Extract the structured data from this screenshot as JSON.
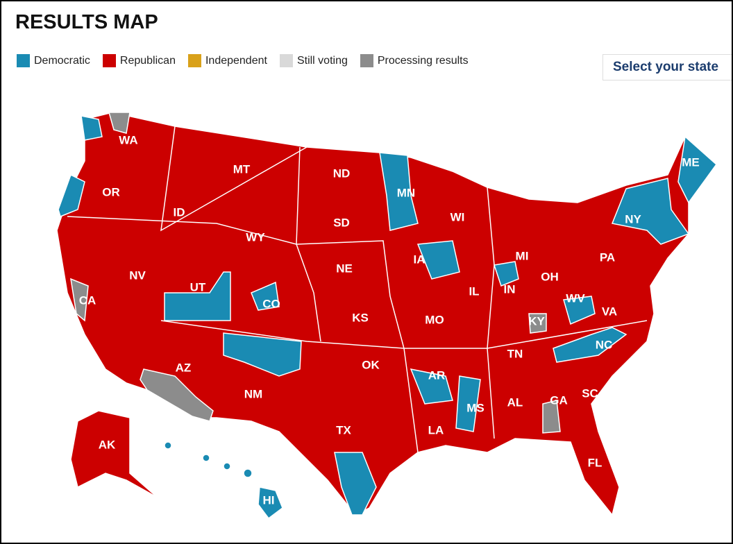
{
  "header": {
    "title": "RESULTS MAP",
    "button": "Select your state"
  },
  "legend": [
    {
      "label": "Democratic",
      "color": "#1a8bb3"
    },
    {
      "label": "Republican",
      "color": "#cc0000"
    },
    {
      "label": "Independent",
      "color": "#d9a11a"
    },
    {
      "label": "Still voting",
      "color": "#d9d9d9"
    },
    {
      "label": "Processing results",
      "color": "#8c8c8c"
    }
  ],
  "states": [
    "WA",
    "OR",
    "CA",
    "NV",
    "ID",
    "MT",
    "WY",
    "UT",
    "CO",
    "AZ",
    "NM",
    "ND",
    "SD",
    "NE",
    "KS",
    "OK",
    "TX",
    "MN",
    "IA",
    "MO",
    "AR",
    "LA",
    "WI",
    "IL",
    "MS",
    "MI",
    "IN",
    "OH",
    "KY",
    "TN",
    "AL",
    "GA",
    "FL",
    "SC",
    "NC",
    "VA",
    "WV",
    "PA",
    "NY",
    "ME",
    "AK",
    "HI"
  ]
}
